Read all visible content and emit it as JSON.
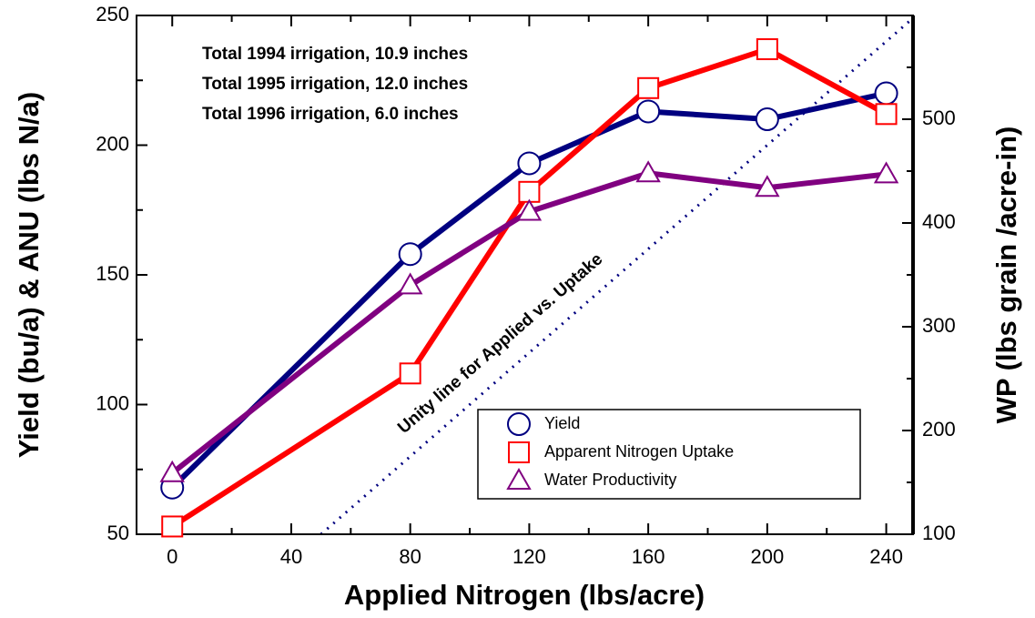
{
  "chart_data": {
    "type": "line",
    "x_label": "Applied Nitrogen (lbs/acre)",
    "y_label": "Yield (bu/a) & ANU (lbs N/a)",
    "y2_label": "WP (lbs grain /acre-in)",
    "annotations": [
      "Total 1994 irrigation, 10.9 inches",
      "Total 1995 irrigation, 12.0 inches",
      "Total 1996 irrigation,  6.0 inches"
    ],
    "unity_line_label": "Unity line for Applied vs. Uptake",
    "x": [
      0,
      80,
      120,
      160,
      200,
      240
    ],
    "series": [
      {
        "name": "Yield",
        "color": "#000080",
        "marker": "circle",
        "values": [
          68,
          158,
          193,
          213,
          210,
          220
        ]
      },
      {
        "name": "Apparent Nitrogen Uptake",
        "color": "#ff0000",
        "marker": "square",
        "values": [
          53,
          112,
          182,
          222,
          237,
          212
        ]
      },
      {
        "name": "Water Productivity",
        "color": "#800080",
        "marker": "triangle",
        "axis": "y2",
        "values": [
          159,
          340,
          411,
          448,
          434,
          447
        ]
      }
    ],
    "xlim": [
      -12,
      249
    ],
    "xticks": [
      0,
      40,
      80,
      120,
      160,
      200,
      240
    ],
    "xminorticks": [
      20,
      60,
      100,
      140,
      180,
      220
    ],
    "ylim": [
      50,
      250
    ],
    "yticks": [
      50,
      100,
      150,
      200,
      250
    ],
    "yminorticks": [
      75,
      125,
      175,
      225
    ],
    "y2lim": [
      100,
      600
    ],
    "y2ticks": [
      100,
      200,
      300,
      400,
      500
    ],
    "y2minorticks": [
      150,
      250,
      350,
      450,
      550
    ]
  }
}
